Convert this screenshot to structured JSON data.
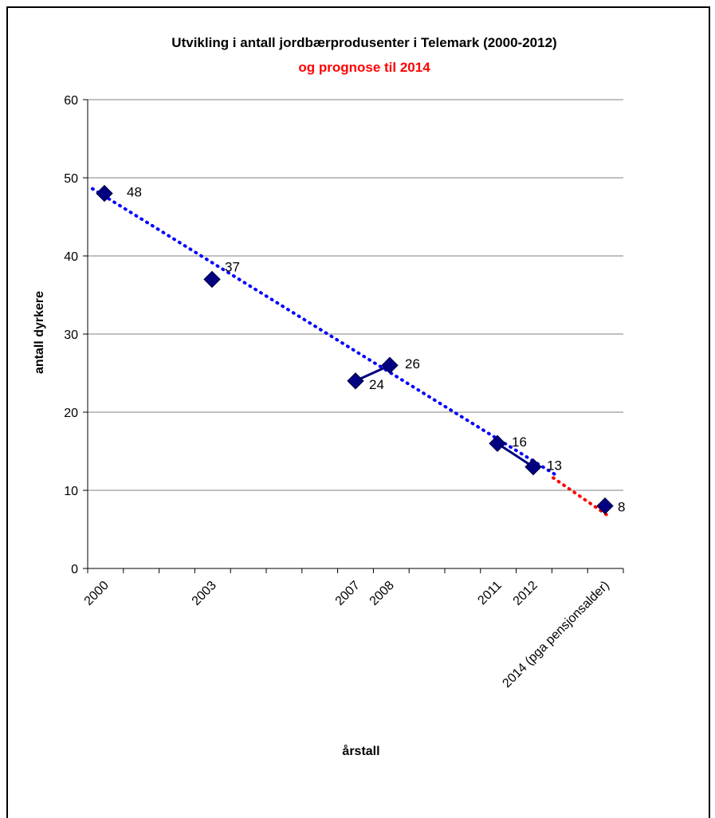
{
  "chart_data": {
    "type": "line",
    "title": "Utvikling i antall jordbærprodusenter i Telemark (2000-2012)",
    "subtitle": "og prognose til 2014",
    "xlabel": "årstall",
    "ylabel": "antall dyrkere",
    "ylim": [
      0,
      60
    ],
    "yticks": [
      0,
      10,
      20,
      30,
      40,
      50,
      60
    ],
    "grid": true,
    "categories": [
      "2000",
      "2003",
      "2007",
      "2008",
      "2011",
      "2012",
      "2014 (pga pensjonsalder)"
    ],
    "series": [
      {
        "values": [
          48,
          37,
          24,
          26,
          16,
          13,
          8
        ]
      }
    ],
    "annotations": [
      "48",
      "37",
      "24",
      "26",
      "16",
      "13",
      "8"
    ],
    "colors": {
      "series": "#000080",
      "trend": "#0000ff",
      "forecast": "#ff0000",
      "subtitle": "#ff0000",
      "grid": "#808080"
    }
  }
}
